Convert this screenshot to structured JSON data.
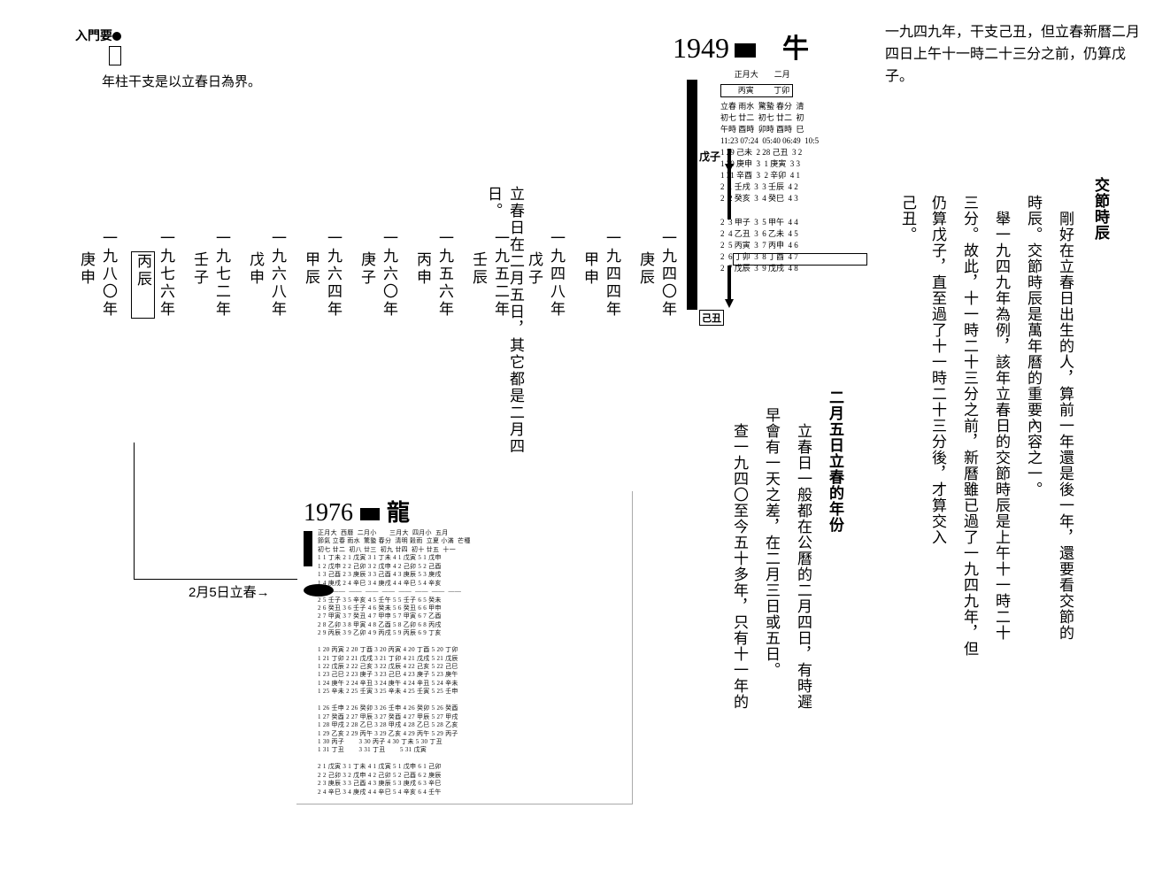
{
  "left": {
    "intro_label": "入門要",
    "intro_text": "年柱干支是以立春日為界。",
    "heading": "立春日在二月五日，其它都是二月四日。",
    "years": [
      {
        "y": "一九四〇年",
        "gz": "庚辰"
      },
      {
        "y": "一九四四年",
        "gz": "甲申"
      },
      {
        "y": "一九四八年",
        "gz": "戊子"
      },
      {
        "y": "一九五二年",
        "gz": "壬辰"
      },
      {
        "y": "一九五六年",
        "gz": "丙申"
      },
      {
        "y": "一九六〇年",
        "gz": "庚子"
      },
      {
        "y": "一九六四年",
        "gz": "甲辰"
      },
      {
        "y": "一九六八年",
        "gz": "戊申"
      },
      {
        "y": "一九七二年",
        "gz": "壬子"
      },
      {
        "y": "一九七六年",
        "gz": "丙辰",
        "boxed": true
      },
      {
        "y": "一九八〇年",
        "gz": "庚申"
      }
    ],
    "almanac_1976": {
      "year": "1976",
      "bigchar": "龍",
      "arrow_label": "2月5日立春→",
      "rows": "正月大  西曆  二月小       三月大  四月小  五月\n節氣 立春 雨水  驚蟄 春分  清明 穀雨  立夏 小滿  芒種\n初七 廿二  初八 廿三  初九 廿四  初十 廿五  十一\n1 1 丁未 2 1 戊寅 3 1 丁未 4 1 戊寅 5 1 戊申\n1 2 戊申 2 2 己卯 3 2 戊申 4 2 己卯 5 2 己酉\n1 3 己酉 2 3 庚辰 3 3 己酉 4 3 庚辰 5 3 庚戌\n1 4 庚戌 2 4 辛巳 3 4 庚戌 4 4 辛巳 5 4 辛亥\n—— ——  ——  ——  ——  ——  ——  ——  ——\n2 5 壬子 3 5 辛亥 4 5 壬午 5 5 壬子 6 5 癸未\n2 6 癸丑 3 6 壬子 4 6 癸未 5 6 癸丑 6 6 甲申\n2 7 甲寅 3 7 癸丑 4 7 甲申 5 7 甲寅 6 7 乙酉\n2 8 乙卯 3 8 甲寅 4 8 乙酉 5 8 乙卯 6 8 丙戌\n2 9 丙辰 3 9 乙卯 4 9 丙戌 5 9 丙辰 6 9 丁亥\n\n1 20 丙寅 2 20 丁酉 3 20 丙寅 4 20 丁酉 5 20 丁卯\n1 21 丁卯 2 21 戊戌 3 21 丁卯 4 21 戊戌 5 21 戊辰\n1 22 戊辰 2 22 己亥 3 22 戊辰 4 22 己亥 5 22 己巳\n1 23 己巳 2 23 庚子 3 23 己巳 4 23 庚子 5 23 庚午\n1 24 庚午 2 24 辛丑 3 24 庚午 4 24 辛丑 5 24 辛未\n1 25 辛未 2 25 壬寅 3 25 辛未 4 25 壬寅 5 25 壬申\n\n1 26 壬申 2 26 癸卯 3 26 壬申 4 26 癸卯 5 26 癸酉\n1 27 癸酉 2 27 甲辰 3 27 癸酉 4 27 甲辰 5 27 甲戌\n1 28 甲戌 2 28 乙巳 3 28 甲戌 4 28 乙巳 5 28 乙亥\n1 29 乙亥 2 29 丙午 3 29 乙亥 4 29 丙午 5 29 丙子\n1 30 丙子        3 30 丙子 4 30 丁未 5 30 丁丑\n1 31 丁丑        3 31 丁丑        5 31 戊寅\n\n2 1 戊寅 3 1 丁未 4 1 戊寅 5 1 戊申 6 1 己卯\n2 2 己卯 3 2 戊申 4 2 己卯 5 2 己酉 6 2 庚辰\n2 3 庚辰 3 3 己酉 4 3 庚辰 5 3 庚戌 6 3 辛巳\n2 4 辛巳 3 4 庚戌 4 4 辛巳 5 4 辛亥 6 4 壬午"
    }
  },
  "right": {
    "topnote": "一九四九年，干支己丑，但立春新曆二月四日上午十一時二十三分之前，仍算戊子。",
    "almanac_1949": {
      "year": "1949",
      "bigchar": "牛",
      "subhead": "       正月大        二月",
      "monthrow": "       丙寅          丁卯",
      "grid": "立春 雨水  驚蟄 春分  清\n初七 廿二  初七 廿二  初\n午時 酉時  卯時 酉時  巳\n11:23 07:24  05:40 06:49  10:5\n1 29 己未  2 28 己丑  3 2\n1 30 庚申  3  1 庚寅  3 3\n1 31 辛酉  3  2 辛卯  4 1\n2  1 壬戌  3  3 壬辰  4 2\n2  2 癸亥  3  4 癸巳  4 3\n\n2  3 甲子  3  5 甲午  4 4\n2  4 乙丑  3  6 乙未  4 5\n2  5 丙寅  3  7 丙申  4 6\n2  6 丁卯  3  8 丁酉  4 7\n2  7 戊辰  3  9 戊戌  4 8",
      "label_a": "戊子",
      "label_b": "己丑"
    },
    "sec1_title": "交節時辰",
    "sec1_cols": [
      "　剛好在立春日出生的人，算前一年還是後一年，還要看交節的",
      "時辰。交節時辰是萬年曆的重要內容之一。",
      "　舉一九四九年為例，該年立春日的交節時辰是上午十一時二十",
      "三分。故此，十一時二十三分之前，新曆雖已過了一九四九年，但",
      "仍算戊子，直至過了十一時二十三分後，才算交入己丑。"
    ],
    "sec2_title": "二月五日立春的年份",
    "sec2_cols": [
      "　立春日一般都在公曆的二月四日，有時遲",
      "早會有一天之差，在二月三日或五日。",
      "　查一九四〇至今五十多年，只有十一年的"
    ]
  }
}
